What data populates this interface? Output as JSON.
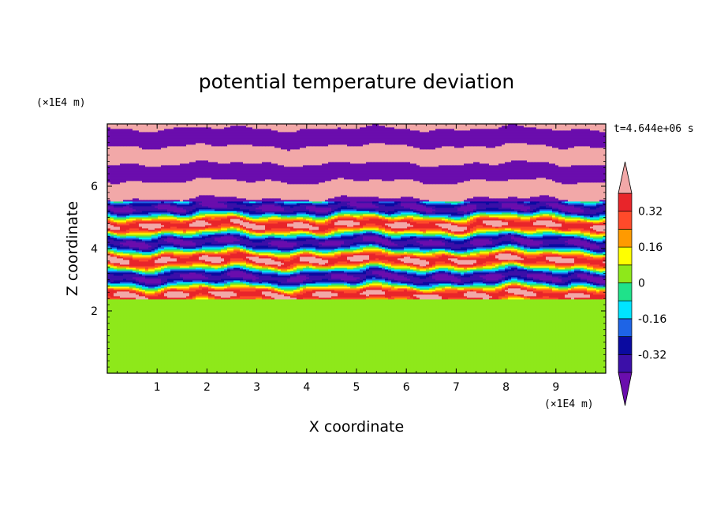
{
  "chart_data": {
    "type": "heatmap",
    "title": "potential temperature deviation",
    "xlabel": "X coordinate",
    "ylabel": "Z coordinate",
    "x_unit": "(×1E4 m)",
    "y_unit": "(×1E4 m)",
    "time_label": "t=4.644e+06 s",
    "xlim": [
      0,
      10
    ],
    "ylim": [
      0,
      8
    ],
    "x_ticks": [
      "1",
      "2",
      "3",
      "4",
      "5",
      "6",
      "7",
      "8",
      "9"
    ],
    "x_tick_values": [
      1,
      2,
      3,
      4,
      5,
      6,
      7,
      8,
      9
    ],
    "y_ticks": [
      "2",
      "4",
      "6"
    ],
    "y_tick_values": [
      2,
      4,
      6
    ],
    "grid": false,
    "colorbar": {
      "placement": "right",
      "levels": [
        -0.4,
        -0.32,
        -0.24,
        -0.16,
        -0.08,
        0,
        0.08,
        0.16,
        0.24,
        0.32,
        0.4
      ],
      "colors_low_to_high": [
        "#6a0dad",
        "#3b0fa8",
        "#0a0aa0",
        "#1e64e6",
        "#00e5ff",
        "#1fe28a",
        "#8ee81a",
        "#ffff00",
        "#ff9a00",
        "#ff4a2a",
        "#e8252a",
        "#f2a8a8"
      ],
      "labels": [
        "0.32",
        "0.16",
        "0",
        "-0.16",
        "-0.32"
      ],
      "label_values": [
        0.32,
        0.16,
        0,
        -0.16,
        -0.32
      ]
    },
    "description_bands": [
      {
        "z_range": [
          0,
          2.0
        ],
        "value": 0.04
      },
      {
        "z_range": [
          2.0,
          2.4
        ],
        "value": 0.0
      },
      {
        "z_range": [
          2.4,
          8.0
        ],
        "value": "alternating ~0.4 and ~-0.4 layers"
      }
    ]
  }
}
